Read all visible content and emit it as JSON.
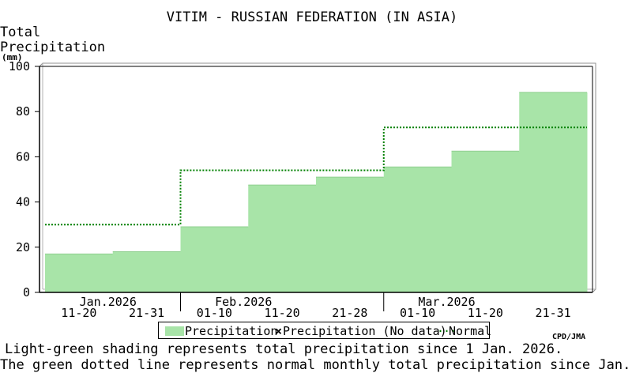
{
  "chart_data": {
    "type": "area",
    "title": "VITIM - RUSSIAN FEDERATION (IN ASIA)",
    "ylabel_lines": [
      "Total",
      "Precipitation"
    ],
    "yunit": "(mm)",
    "ylim": [
      0,
      100
    ],
    "yticks": [
      "0",
      "20",
      "40",
      "60",
      "80",
      "100"
    ],
    "periods": [
      "Jan 11-20",
      "Jan 21-31",
      "Feb 01-10",
      "Feb 11-20",
      "Feb 21-28",
      "Mar 01-10",
      "Mar 11-20",
      "Mar 21-31"
    ],
    "period_labels": [
      "11-20",
      "21-31",
      "01-10",
      "11-20",
      "21-28",
      "01-10",
      "11-20",
      "21-31"
    ],
    "month_labels": [
      "Jan.2026",
      "Feb.2026",
      "Mar.2026"
    ],
    "series": [
      {
        "name": "Precipitation",
        "color": "#a8e4a8",
        "values": [
          17,
          18,
          29,
          47.5,
          51,
          55.5,
          62.5,
          88.5
        ]
      },
      {
        "name": "Normal",
        "color": "#008000",
        "style": "dotted",
        "values": [
          30,
          30,
          54,
          54,
          54,
          73,
          73,
          73
        ]
      }
    ],
    "legend": [
      "Precipitation",
      "Precipitation (No data)",
      "Normal"
    ],
    "legend_placement": "bottom",
    "grid": false
  },
  "credit": "CPD/JMA",
  "notes": [
    "Light-green shading represents total precipitation since 1 Jan. 2026.",
    "The green dotted line represents normal monthly total precipitation since Jan."
  ]
}
